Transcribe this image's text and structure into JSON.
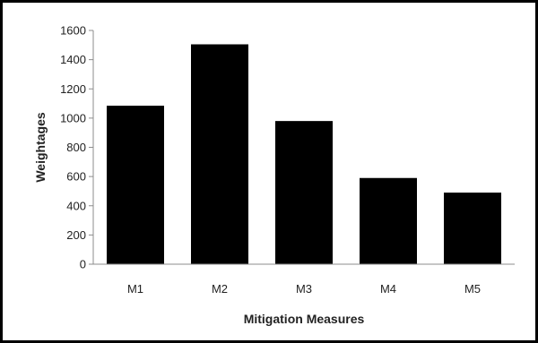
{
  "chart_data": {
    "type": "bar",
    "title": "",
    "xlabel": "Mitigation Measures",
    "ylabel": "Weightages",
    "categories": [
      "M1",
      "M2",
      "M3",
      "M4",
      "M5"
    ],
    "values": [
      1085,
      1505,
      980,
      590,
      490
    ],
    "ylim": [
      0,
      1600
    ],
    "yticks": [
      0,
      200,
      400,
      600,
      800,
      1000,
      1200,
      1400,
      1600
    ],
    "yticklabels": [
      "0",
      "200",
      "400",
      "600",
      "800",
      "1000",
      "1200",
      "1400",
      "1600"
    ],
    "bar_color": "#000000",
    "grid": false,
    "legend": "none"
  }
}
